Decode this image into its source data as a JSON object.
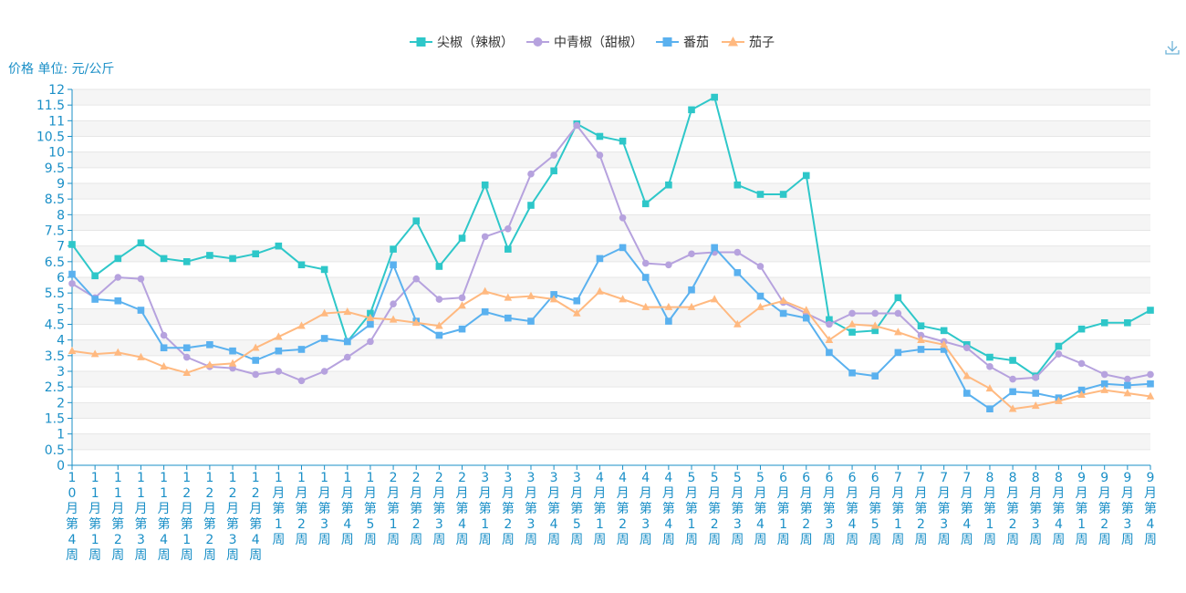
{
  "colors": {
    "axis": "#1a8fc7",
    "grid_band": "#f5f5f5",
    "grid_line": "#e6e6e6",
    "download_icon": "#6fb3d8"
  },
  "toolbox": {
    "icon": "download-icon"
  },
  "chart_data": {
    "type": "line",
    "ylabel": "价格 单位: 元/公斤",
    "ylim": [
      0,
      12
    ],
    "ytick_step": 0.5,
    "grid": true,
    "legend_position": "top-center",
    "categories": [
      "10月第4周",
      "11月第1周",
      "11月第2周",
      "11月第3周",
      "11月第4周",
      "12月第1周",
      "12月第2周",
      "12月第3周",
      "12月第4周",
      "1月第1周",
      "1月第2周",
      "1月第3周",
      "1月第4周",
      "1月第5周",
      "2月第1周",
      "2月第2周",
      "2月第3周",
      "2月第4周",
      "3月第1周",
      "3月第2周",
      "3月第3周",
      "3月第4周",
      "3月第5周",
      "4月第1周",
      "4月第2周",
      "4月第3周",
      "4月第4周",
      "5月第1周",
      "5月第2周",
      "5月第3周",
      "5月第4周",
      "6月第1周",
      "6月第2周",
      "6月第3周",
      "6月第4周",
      "6月第5周",
      "7月第1周",
      "7月第2周",
      "7月第3周",
      "7月第4周",
      "8月第1周",
      "8月第2周",
      "8月第3周",
      "8月第4周",
      "9月第1周",
      "9月第2周",
      "9月第3周",
      "9月第4周"
    ],
    "series": [
      {
        "name": "尖椒（辣椒）",
        "color": "#2ec7c9",
        "marker": "square",
        "values": [
          7.05,
          6.05,
          6.6,
          7.1,
          6.6,
          6.5,
          6.7,
          6.6,
          6.75,
          7.0,
          6.4,
          6.25,
          3.95,
          4.85,
          6.9,
          7.8,
          6.35,
          7.25,
          8.95,
          6.9,
          8.3,
          9.4,
          10.9,
          10.5,
          10.35,
          8.35,
          8.95,
          11.35,
          11.75,
          8.95,
          8.65,
          8.65,
          9.25,
          4.65,
          4.25,
          4.3,
          5.35,
          4.45,
          4.3,
          3.85,
          3.45,
          3.35,
          2.85,
          3.8,
          4.35,
          4.55,
          4.55,
          4.95
        ]
      },
      {
        "name": "中青椒（甜椒）",
        "color": "#b6a2de",
        "marker": "circle",
        "values": [
          5.8,
          5.35,
          6.0,
          5.95,
          4.15,
          3.45,
          3.15,
          3.1,
          2.9,
          3.0,
          2.7,
          3.0,
          3.45,
          3.95,
          5.15,
          5.95,
          5.3,
          5.35,
          7.3,
          7.55,
          9.3,
          9.9,
          10.85,
          9.9,
          7.9,
          6.45,
          6.4,
          6.75,
          6.8,
          6.8,
          6.35,
          5.2,
          4.85,
          4.5,
          4.85,
          4.85,
          4.85,
          4.15,
          3.95,
          3.75,
          3.15,
          2.75,
          2.8,
          3.55,
          3.25,
          2.9,
          2.75,
          2.9
        ]
      },
      {
        "name": "番茄",
        "color": "#5ab1ef",
        "marker": "square",
        "values": [
          6.1,
          5.3,
          5.25,
          4.95,
          3.75,
          3.75,
          3.85,
          3.65,
          3.35,
          3.65,
          3.7,
          4.05,
          3.95,
          4.5,
          6.4,
          4.6,
          4.15,
          4.35,
          4.9,
          4.7,
          4.6,
          5.45,
          5.25,
          6.6,
          6.95,
          6.0,
          4.6,
          5.6,
          6.95,
          6.15,
          5.4,
          4.85,
          4.7,
          3.6,
          2.95,
          2.85,
          3.6,
          3.7,
          3.7,
          2.3,
          1.8,
          2.35,
          2.3,
          2.15,
          2.4,
          2.6,
          2.55,
          2.6
        ]
      },
      {
        "name": "茄子",
        "color": "#ffb980",
        "marker": "triangle",
        "values": [
          3.65,
          3.55,
          3.6,
          3.45,
          3.15,
          2.95,
          3.2,
          3.25,
          3.75,
          4.1,
          4.45,
          4.85,
          4.9,
          4.7,
          4.65,
          4.55,
          4.45,
          5.1,
          5.55,
          5.35,
          5.4,
          5.3,
          4.85,
          5.55,
          5.3,
          5.05,
          5.05,
          5.05,
          5.3,
          4.5,
          5.05,
          5.25,
          4.95,
          4.0,
          4.5,
          4.45,
          4.25,
          4.0,
          3.85,
          2.85,
          2.45,
          1.8,
          1.9,
          2.05,
          2.25,
          2.4,
          2.3,
          2.2
        ]
      }
    ]
  }
}
